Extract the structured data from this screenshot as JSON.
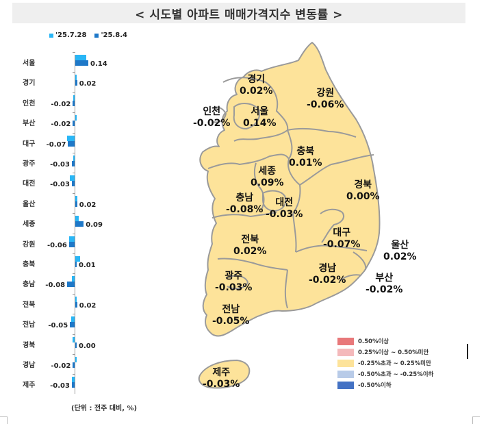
{
  "title": "< 시도별 아파트 매매가격지수 변동률 >",
  "legend_series": [
    {
      "label": "'25.7.28",
      "color": "#29b6f6"
    },
    {
      "label": "'25.8.4",
      "color": "#1e78c8"
    }
  ],
  "unit_note": "(단위 : 전주 대비, %)",
  "chart_data": [
    {
      "type": "bar",
      "orientation": "horizontal",
      "title": "시도별 아파트 매매가격지수 변동률",
      "categories": [
        "서울",
        "경기",
        "인천",
        "부산",
        "대구",
        "광주",
        "대전",
        "울산",
        "세종",
        "강원",
        "충북",
        "충남",
        "전북",
        "전남",
        "경북",
        "경남",
        "제주"
      ],
      "series": [
        {
          "name": "'25.7.28",
          "values": [
            0.12,
            0.01,
            -0.01,
            0.0,
            -0.08,
            -0.01,
            -0.05,
            0.02,
            0.04,
            -0.06,
            0.05,
            -0.03,
            0.01,
            -0.04,
            -0.02,
            0.0,
            -0.03
          ]
        },
        {
          "name": "'25.8.4",
          "values": [
            0.14,
            0.02,
            -0.02,
            -0.02,
            -0.07,
            -0.03,
            -0.03,
            0.02,
            0.09,
            -0.06,
            0.01,
            -0.08,
            0.02,
            -0.05,
            0.0,
            -0.02,
            -0.03
          ]
        }
      ],
      "data_labels": [
        "0.14",
        "0.02",
        "-0.02",
        "-0.02",
        "-0.07",
        "-0.03",
        "-0.03",
        "0.02",
        "0.09",
        "-0.06",
        "0.01",
        "-0.08",
        "0.02",
        "-0.05",
        "0.00",
        "-0.02",
        "-0.03"
      ],
      "xlabel": "",
      "ylabel": "",
      "unit": "전주 대비, %",
      "legend_position": "top"
    },
    {
      "type": "choropleth-map",
      "title": "시도별 아파트 매매가격지수 변동률 ('25.8.4)",
      "regions": [
        {
          "name": "경기",
          "value": "0.02%"
        },
        {
          "name": "강원",
          "value": "-0.06%"
        },
        {
          "name": "인천",
          "value": "-0.02%"
        },
        {
          "name": "서울",
          "value": "0.14%"
        },
        {
          "name": "충북",
          "value": "0.01%"
        },
        {
          "name": "세종",
          "value": "0.09%"
        },
        {
          "name": "경북",
          "value": "0.00%"
        },
        {
          "name": "충남",
          "value": "-0.08%"
        },
        {
          "name": "대전",
          "value": "-0.03%"
        },
        {
          "name": "대구",
          "value": "-0.07%"
        },
        {
          "name": "전북",
          "value": "0.02%"
        },
        {
          "name": "울산",
          "value": "0.02%"
        },
        {
          "name": "광주",
          "value": "-0.03%"
        },
        {
          "name": "경남",
          "value": "-0.02%"
        },
        {
          "name": "부산",
          "value": "-0.02%"
        },
        {
          "name": "전남",
          "value": "-0.05%"
        },
        {
          "name": "제주",
          "value": "-0.03%"
        }
      ],
      "legend": [
        {
          "label": "0.50%이상",
          "color": "#e8787a"
        },
        {
          "label": "0.25%이상 ~ 0.50%미만",
          "color": "#f4b9bb"
        },
        {
          "label": "-0.25%초과 ~ 0.25%미만",
          "color": "#fde39a"
        },
        {
          "label": "-0.50%초과 ~ -0.25%이하",
          "color": "#b8cbe8"
        },
        {
          "label": "-0.50%이하",
          "color": "#4472c4"
        }
      ]
    }
  ],
  "map_fill": "#fde39a",
  "map_stroke": "#9a9a9a"
}
